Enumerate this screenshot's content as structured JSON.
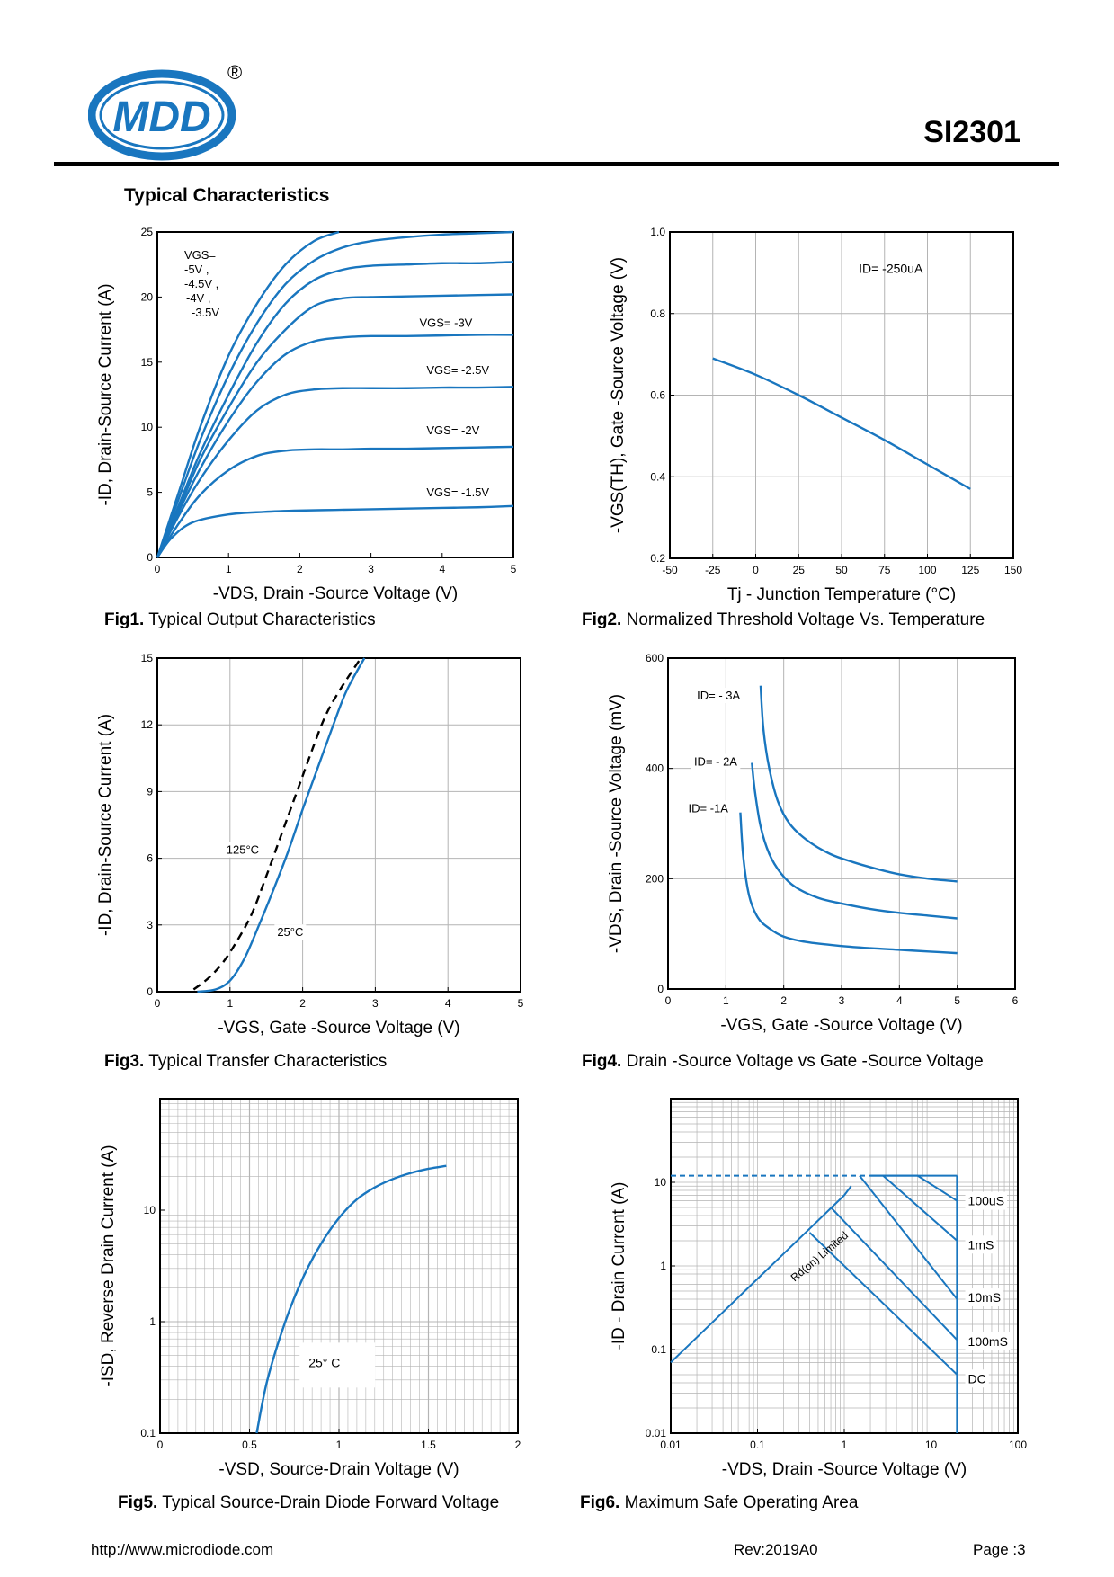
{
  "header": {
    "logo_text": "MDD",
    "registered": "®",
    "part_number": "SI2301"
  },
  "section_title": "Typical  Characteristics",
  "footer": {
    "url": "http://www.microdiode.com",
    "rev": "Rev:2019A0",
    "page": "Page :3"
  },
  "colors": {
    "curve": "#1976bf",
    "frame": "#000000",
    "grid": "#b4b4b4"
  },
  "captions": {
    "fig1": {
      "num": "Fig1.",
      "text": " Typical Output Characteristics"
    },
    "fig2": {
      "num": "Fig2.",
      "text": " Normalized Threshold Voltage Vs. Temperature"
    },
    "fig3": {
      "num": "Fig3.",
      "text": " Typical Transfer Characteristics"
    },
    "fig4": {
      "num": "Fig4.",
      "text": " Drain -Source Voltage vs Gate -Source Voltage"
    },
    "fig5": {
      "num": "Fig5.",
      "text": " Typical Source-Drain Diode Forward Voltage"
    },
    "fig6": {
      "num": "Fig6.",
      "text": " Maximum Safe Operating Area"
    }
  },
  "chart_data": [
    {
      "id": "fig1",
      "type": "line",
      "xlabel": "-VDS, Drain -Source Voltage (V)",
      "ylabel": "-ID, Drain-Source Current (A)",
      "xlim": [
        0,
        5
      ],
      "ylim": [
        0,
        25
      ],
      "xticks": [
        0,
        1,
        2,
        3,
        4,
        5
      ],
      "yticks": [
        0,
        5,
        10,
        15,
        20,
        25
      ],
      "legend_text": [
        "VGS=",
        "-5V ,",
        "-4.5V ,",
        "-4V ,",
        "-3.5V"
      ],
      "series": [
        {
          "name": "VGS= -5V",
          "x": [
            0,
            0.3,
            0.6,
            1.0,
            1.4,
            1.8,
            2.2,
            2.55
          ],
          "y": [
            0,
            5,
            10,
            15.5,
            19.5,
            22.5,
            24.3,
            25
          ]
        },
        {
          "name": "VGS= -4.5V",
          "x": [
            0,
            0.3,
            0.6,
            1.0,
            1.4,
            1.8,
            2.2,
            2.6,
            3.0,
            3.5,
            4,
            4.5,
            5
          ],
          "y": [
            0,
            4.5,
            9,
            14,
            18,
            21,
            22.8,
            23.8,
            24.3,
            24.6,
            24.8,
            24.9,
            25
          ]
        },
        {
          "name": "VGS= -4V",
          "x": [
            0,
            0.3,
            0.6,
            1.0,
            1.4,
            1.8,
            2.2,
            2.6,
            3.0,
            3.5,
            4,
            4.5,
            5
          ],
          "y": [
            0,
            4,
            8,
            12.5,
            16.5,
            19.5,
            21.3,
            22.1,
            22.4,
            22.5,
            22.6,
            22.6,
            22.7
          ]
        },
        {
          "name": "VGS= -3.5V",
          "x": [
            0,
            0.3,
            0.6,
            1.0,
            1.4,
            1.8,
            2.2,
            2.6,
            3.0,
            3.5,
            4,
            4.5,
            5
          ],
          "y": [
            0,
            3.7,
            7.5,
            11.5,
            15,
            17.5,
            19.3,
            19.9,
            20,
            20.05,
            20.1,
            20.15,
            20.2
          ]
        },
        {
          "name": "VGS= -3V",
          "label": "VGS= -3V",
          "lx": 3.68,
          "ly": 17.7,
          "x": [
            0,
            0.3,
            0.6,
            1.0,
            1.4,
            1.8,
            2.2,
            2.6,
            3.0,
            3.5,
            4,
            4.5,
            5
          ],
          "y": [
            0,
            3.5,
            6.8,
            10.5,
            13.5,
            15.6,
            16.6,
            16.9,
            17,
            17,
            17.05,
            17.1,
            17.1
          ]
        },
        {
          "name": "VGS= -2.5V",
          "label": "VGS= -2.5V",
          "lx": 3.78,
          "ly": 14.1,
          "x": [
            0,
            0.3,
            0.6,
            1.0,
            1.4,
            1.8,
            2.2,
            2.6,
            3.0,
            3.5,
            4,
            4.5,
            5
          ],
          "y": [
            0,
            3.2,
            6,
            9,
            11.3,
            12.5,
            12.9,
            13,
            13,
            13,
            13.05,
            13.05,
            13.1
          ]
        },
        {
          "name": "VGS= -2V",
          "label": "VGS= -2V",
          "lx": 3.78,
          "ly": 9.45,
          "x": [
            0,
            0.3,
            0.6,
            1.0,
            1.4,
            1.8,
            2.2,
            2.6,
            3.0,
            3.5,
            4,
            4.5,
            5
          ],
          "y": [
            0,
            2.6,
            4.8,
            6.7,
            7.8,
            8.2,
            8.3,
            8.3,
            8.35,
            8.35,
            8.4,
            8.45,
            8.5
          ]
        },
        {
          "name": "VGS= -1.5V",
          "label": "VGS= -1.5V",
          "lx": 3.78,
          "ly": 4.7,
          "x": [
            0,
            0.2,
            0.5,
            1.0,
            1.5,
            2.0,
            2.5,
            3.0,
            3.5,
            4,
            4.5,
            5
          ],
          "y": [
            0,
            1.5,
            2.7,
            3.3,
            3.5,
            3.6,
            3.65,
            3.7,
            3.75,
            3.8,
            3.85,
            3.95
          ]
        }
      ]
    },
    {
      "id": "fig2",
      "type": "line",
      "xlabel": "Tj - Junction Temperature (°C)",
      "ylabel": "-VGS(TH), Gate -Source Voltage (V)",
      "xlim": [
        -50,
        150
      ],
      "ylim": [
        0.2,
        1.0
      ],
      "xticks": [
        -50,
        -25,
        0,
        25,
        50,
        75,
        100,
        125,
        150
      ],
      "yticks": [
        0.2,
        0.4,
        0.6,
        0.8,
        1.0
      ],
      "ytick_labels": [
        "0.2",
        "0.4",
        "0.6",
        "0.8",
        "1.0"
      ],
      "annotation": "ID= -250uA",
      "series": [
        {
          "name": "ID= -250uA",
          "x": [
            -25,
            0,
            25,
            50,
            75,
            100,
            125
          ],
          "y": [
            0.69,
            0.65,
            0.6,
            0.545,
            0.49,
            0.43,
            0.37
          ]
        }
      ]
    },
    {
      "id": "fig3",
      "type": "line",
      "xlabel": "-VGS, Gate -Source Voltage (V)",
      "ylabel": "-ID, Drain-Source Current (A)",
      "xlim": [
        0,
        5
      ],
      "ylim": [
        0,
        15
      ],
      "xticks": [
        0,
        1,
        2,
        3,
        4,
        5
      ],
      "yticks": [
        0,
        3,
        6,
        9,
        12,
        15
      ],
      "series": [
        {
          "name": "25°C",
          "label": "25°C",
          "lx": 1.65,
          "ly": 2.5,
          "x": [
            0.55,
            0.8,
            1.0,
            1.2,
            1.4,
            1.6,
            1.8,
            2.0,
            2.2,
            2.4,
            2.6,
            2.85
          ],
          "y": [
            0,
            0.1,
            0.5,
            1.5,
            3,
            4.6,
            6.3,
            8.2,
            10,
            11.8,
            13.5,
            15
          ]
        },
        {
          "name": "125°C",
          "label": "125°C",
          "lx": 0.95,
          "ly": 6.2,
          "dashed": true,
          "x": [
            0.5,
            0.7,
            0.9,
            1.1,
            1.3,
            1.5,
            1.7,
            1.9,
            2.1,
            2.3,
            2.5,
            2.8
          ],
          "y": [
            0.1,
            0.6,
            1.3,
            2.3,
            3.5,
            5.2,
            7,
            8.8,
            10.6,
            12.3,
            13.5,
            15
          ]
        }
      ]
    },
    {
      "id": "fig4",
      "type": "line",
      "xlabel": "-VGS, Gate -Source Voltage (V)",
      "ylabel": "-VDS, Drain -Source Voltage (mV)",
      "xlim": [
        0,
        6
      ],
      "ylim": [
        0,
        600
      ],
      "xticks": [
        0,
        1,
        2,
        3,
        4,
        5,
        6
      ],
      "yticks": [
        0,
        200,
        400,
        600
      ],
      "series": [
        {
          "name": "ID= - 3A",
          "label": "ID= - 3A",
          "lx": 0.5,
          "ly": 525,
          "x": [
            1.6,
            1.65,
            1.75,
            1.9,
            2.1,
            2.4,
            2.8,
            3.2,
            3.6,
            4.0,
            4.5,
            5.0
          ],
          "y": [
            550,
            470,
            400,
            340,
            300,
            270,
            245,
            230,
            218,
            208,
            200,
            195
          ]
        },
        {
          "name": "ID= - 2A",
          "label": "ID= - 2A",
          "lx": 0.45,
          "ly": 405,
          "x": [
            1.45,
            1.5,
            1.6,
            1.75,
            1.95,
            2.2,
            2.6,
            3.0,
            3.5,
            4.0,
            4.5,
            5.0
          ],
          "y": [
            410,
            360,
            295,
            245,
            210,
            185,
            165,
            155,
            145,
            138,
            133,
            128
          ]
        },
        {
          "name": "ID= -1A",
          "label": "ID= -1A",
          "lx": 0.35,
          "ly": 320,
          "x": [
            1.25,
            1.3,
            1.4,
            1.55,
            1.75,
            2.0,
            2.4,
            3.0,
            3.5,
            4.0,
            4.5,
            5.0
          ],
          "y": [
            320,
            240,
            170,
            130,
            110,
            95,
            85,
            78,
            74,
            71,
            68,
            65
          ]
        }
      ]
    },
    {
      "id": "fig5",
      "type": "line",
      "xscale": "linear",
      "yscale": "log",
      "xlabel": "-VSD, Source-Drain Voltage (V)",
      "ylabel": "-ISD, Reverse Drain Current (A)",
      "xlim": [
        0,
        2
      ],
      "ylim": [
        0.1,
        100
      ],
      "xticks": [
        0,
        0.5,
        1,
        1.5,
        2
      ],
      "xtick_labels": [
        "0",
        "0.5",
        "1",
        "1.5",
        "2"
      ],
      "yticks": [
        0.1,
        1,
        10
      ],
      "ytick_labels": [
        "0.1",
        "1",
        "10"
      ],
      "annotation": "25° C",
      "series": [
        {
          "name": "25° C",
          "x": [
            0.54,
            0.6,
            0.7,
            0.8,
            0.9,
            1.0,
            1.1,
            1.2,
            1.3,
            1.4,
            1.5,
            1.6
          ],
          "y": [
            0.1,
            0.3,
            1,
            2.5,
            5,
            8.5,
            12.5,
            16,
            19,
            21.5,
            23.5,
            25
          ]
        }
      ]
    },
    {
      "id": "fig6",
      "type": "line",
      "xscale": "log",
      "yscale": "log",
      "xlabel": "-VDS, Drain -Source Voltage (V)",
      "ylabel": "-ID - Drain Current (A)",
      "xlim": [
        0.01,
        100
      ],
      "ylim": [
        0.01,
        100
      ],
      "xticks": [
        0.01,
        0.1,
        1,
        10,
        100
      ],
      "xtick_labels": [
        "0.01",
        "0.1",
        "1",
        "10",
        "100"
      ],
      "yticks": [
        0.01,
        0.1,
        1,
        10
      ],
      "ytick_labels": [
        "0.01",
        "0.1",
        "1",
        "10"
      ],
      "rds_label": "Rd(on) Limited",
      "limit_line": {
        "x": [
          0.01,
          2
        ],
        "y": [
          12,
          12
        ]
      },
      "series": [
        {
          "name": "100uS",
          "label": "100uS",
          "x": [
            2,
            7,
            20,
            20
          ],
          "y": [
            12,
            12,
            6,
            0.05
          ]
        },
        {
          "name": "1mS",
          "label": "1mS",
          "x": [
            2.8,
            20
          ],
          "y": [
            12,
            2
          ]
        },
        {
          "name": "10mS",
          "label": "10mS",
          "x": [
            1.5,
            20
          ],
          "y": [
            12,
            0.4
          ]
        },
        {
          "name": "100mS",
          "label": "100mS",
          "x": [
            0.7,
            20
          ],
          "y": [
            5,
            0.13
          ]
        },
        {
          "name": "DC",
          "label": "DC",
          "x": [
            0.4,
            20
          ],
          "y": [
            2.5,
            0.05
          ]
        },
        {
          "name": "Rd(on) Limited",
          "x": [
            0.01,
            0.1,
            1,
            1.2
          ],
          "y": [
            0.07,
            0.7,
            7,
            9
          ]
        }
      ]
    }
  ]
}
